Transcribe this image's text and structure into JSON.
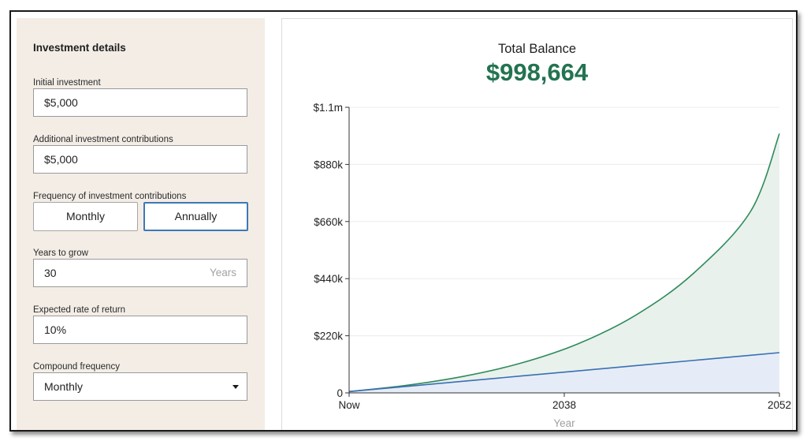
{
  "form": {
    "title": "Investment details",
    "initial_investment": {
      "label": "Initial investment",
      "value": "$5,000"
    },
    "additional_contributions": {
      "label": "Additional investment contributions",
      "value": "$5,000"
    },
    "frequency": {
      "label": "Frequency of investment contributions",
      "options": [
        "Monthly",
        "Annually"
      ],
      "selected": "Annually"
    },
    "years": {
      "label": "Years to grow",
      "value": "30",
      "suffix": "Years"
    },
    "rate": {
      "label": "Expected rate of return",
      "value": "10%"
    },
    "compound": {
      "label": "Compound frequency",
      "value": "Monthly"
    }
  },
  "summary": {
    "label": "Total Balance",
    "value": "$998,664"
  },
  "colors": {
    "balance_line": "#2f8a5b",
    "balance_fill": "#e8f1ec",
    "contrib_line": "#3a6fb4",
    "contrib_fill": "#e6ecf7",
    "accent": "#237350",
    "selected_border": "#3d79b4"
  },
  "chart_data": {
    "type": "area",
    "x_ticks": [
      "Now",
      "2038",
      "2052"
    ],
    "xlabel": "Year",
    "y_ticks": [
      "0",
      "$220k",
      "$440k",
      "$660k",
      "$880k",
      "$1.1m"
    ],
    "ylim": [
      0,
      1100000
    ],
    "x": [
      0,
      4,
      8,
      12,
      16,
      20,
      24,
      28,
      30
    ],
    "series": [
      {
        "values": [
          5000,
          29000,
          64000,
          115000,
          190000,
          300000,
          460000,
          700000,
          998664
        ]
      },
      {
        "values": [
          5000,
          25000,
          45000,
          65000,
          85000,
          105000,
          125000,
          145000,
          155000
        ]
      }
    ],
    "grid": true
  }
}
